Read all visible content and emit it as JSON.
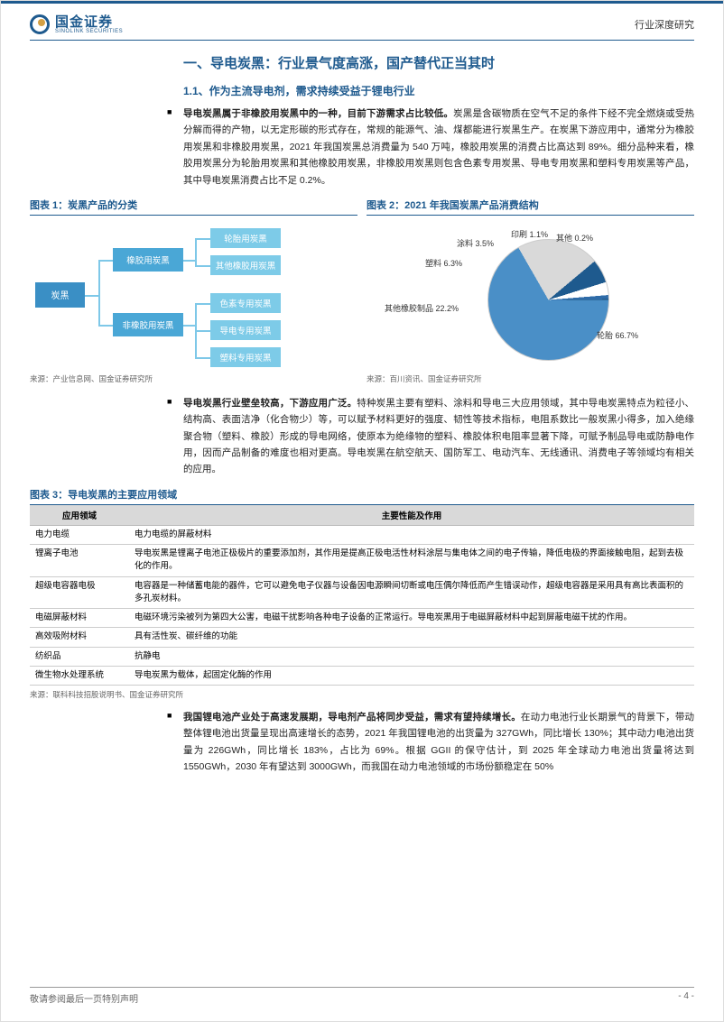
{
  "header": {
    "logo_cn": "国金证券",
    "logo_en": "SINOLINK SECURITIES",
    "right": "行业深度研究"
  },
  "section1": {
    "title": "一、导电炭黑：行业景气度高涨，国产替代正当其时",
    "sub1_title": "1.1、作为主流导电剂，需求持续受益于锂电行业",
    "p1_bold": "导电炭黑属于非橡胶用炭黑中的一种，目前下游需求占比较低。",
    "p1_rest": "炭黑是含碳物质在空气不足的条件下经不完全燃烧或受热分解而得的产物，以无定形碳的形式存在，常规的能源气、油、煤都能进行炭黑生产。在炭黑下游应用中，通常分为橡胶用炭黑和非橡胶用炭黑，2021 年我国炭黑总消费量为 540 万吨，橡胶用炭黑的消费占比高达到 89%。细分品种来看，橡胶用炭黑分为轮胎用炭黑和其他橡胶用炭黑，非橡胶用炭黑则包含色素专用炭黑、导电专用炭黑和塑料专用炭黑等产品，其中导电炭黑消费占比不足 0.2%。"
  },
  "chart1": {
    "title": "图表 1：炭黑产品的分类",
    "root": "炭黑",
    "l2a": "橡胶用炭黑",
    "l2b": "非橡胶用炭黑",
    "l3": [
      "轮胎用炭黑",
      "其他橡胶用炭黑",
      "色素专用炭黑",
      "导电专用炭黑",
      "塑料专用炭黑"
    ],
    "colors": {
      "root": "#3a8fc5",
      "l2": "#4aa7d6",
      "l3": "#7dcbe8",
      "line": "#7ec8e8"
    },
    "source": "来源：产业信息网、国金证券研究所"
  },
  "chart2": {
    "title": "图表 2：2021 年我国炭黑产品消费结构",
    "slices": [
      {
        "label": "轮胎 66.7%",
        "value": 66.7,
        "color": "#4a8fc7"
      },
      {
        "label": "其他橡胶制品 22.2%",
        "value": 22.2,
        "color": "#d9d9d9"
      },
      {
        "label": "塑料 6.3%",
        "value": 6.3,
        "color": "#1e5a8e"
      },
      {
        "label": "涂料 3.5%",
        "value": 3.5,
        "color": "#ffffff"
      },
      {
        "label": "印刷 1.1%",
        "value": 1.1,
        "color": "#2e6ba8"
      },
      {
        "label": "其他 0.2%",
        "value": 0.2,
        "color": "#1a4d7a"
      }
    ],
    "source": "来源：百川资讯、国金证券研究所"
  },
  "p2_bold": "导电炭黑行业壁垒较高，下游应用广泛。",
  "p2_rest": "特种炭黑主要有塑料、涂料和导电三大应用领域，其中导电炭黑特点为粒径小、结构高、表面洁净（化合物少）等，可以赋予材料更好的强度、韧性等技术指标，电阻系数比一般炭黑小得多，加入绝缘聚合物（塑料、橡胶）形成的导电网络，使原本为绝缘物的塑料、橡胶体积电阻率显著下降，可赋予制品导电或防静电作用，因而产品制备的难度也相对更高。导电炭黑在航空航天、国防军工、电动汽车、无线通讯、消费电子等领域均有相关的应用。",
  "table": {
    "title": "图表 3：导电炭黑的主要应用领域",
    "cols": [
      "应用领域",
      "主要性能及作用"
    ],
    "rows": [
      [
        "电力电缆",
        "电力电缆的屏蔽材料"
      ],
      [
        "锂离子电池",
        "导电炭黑是锂离子电池正极极片的重要添加剂，其作用是提高正极电活性材料涂层与集电体之间的电子传输，降低电极的界面接触电阻，起到去极化的作用。"
      ],
      [
        "超级电容器电极",
        "电容器是一种储蓄电能的器件，它可以避免电子仪器与设备因电源瞬间切断或电压偶尔降低而产生错误动作，超级电容器是采用具有高比表面积的多孔炭材料。"
      ],
      [
        "电磁屏蔽材料",
        "电磁环境污染被列为第四大公害，电磁干扰影响各种电子设备的正常运行。导电炭黑用于电磁屏蔽材料中起到屏蔽电磁干扰的作用。"
      ],
      [
        "高效吸附材料",
        "具有活性炭、碳纤维的功能"
      ],
      [
        "纺织品",
        "抗静电"
      ],
      [
        "微生物水处理系统",
        "导电炭黑为载体，起固定化酶的作用"
      ]
    ],
    "source": "来源：联科科技招股说明书、国金证券研究所"
  },
  "p3_bold": "我国锂电池产业处于高速发展期，导电剂产品将同步受益，需求有望持续增长。",
  "p3_rest": "在动力电池行业长期景气的背景下，带动整体锂电池出货量呈现出高速增长的态势，2021 年我国锂电池的出货量为 327GWh，同比增长 130%；其中动力电池出货量为 226GWh，同比增长 183%，占比为 69%。根据 GGII 的保守估计，到 2025 年全球动力电池出货量将达到 1550GWh，2030 年有望达到 3000GWh，而我国在动力电池领域的市场份额稳定在 50%",
  "footer": {
    "left": "敬请参阅最后一页特别声明",
    "page": "- 4 -"
  }
}
